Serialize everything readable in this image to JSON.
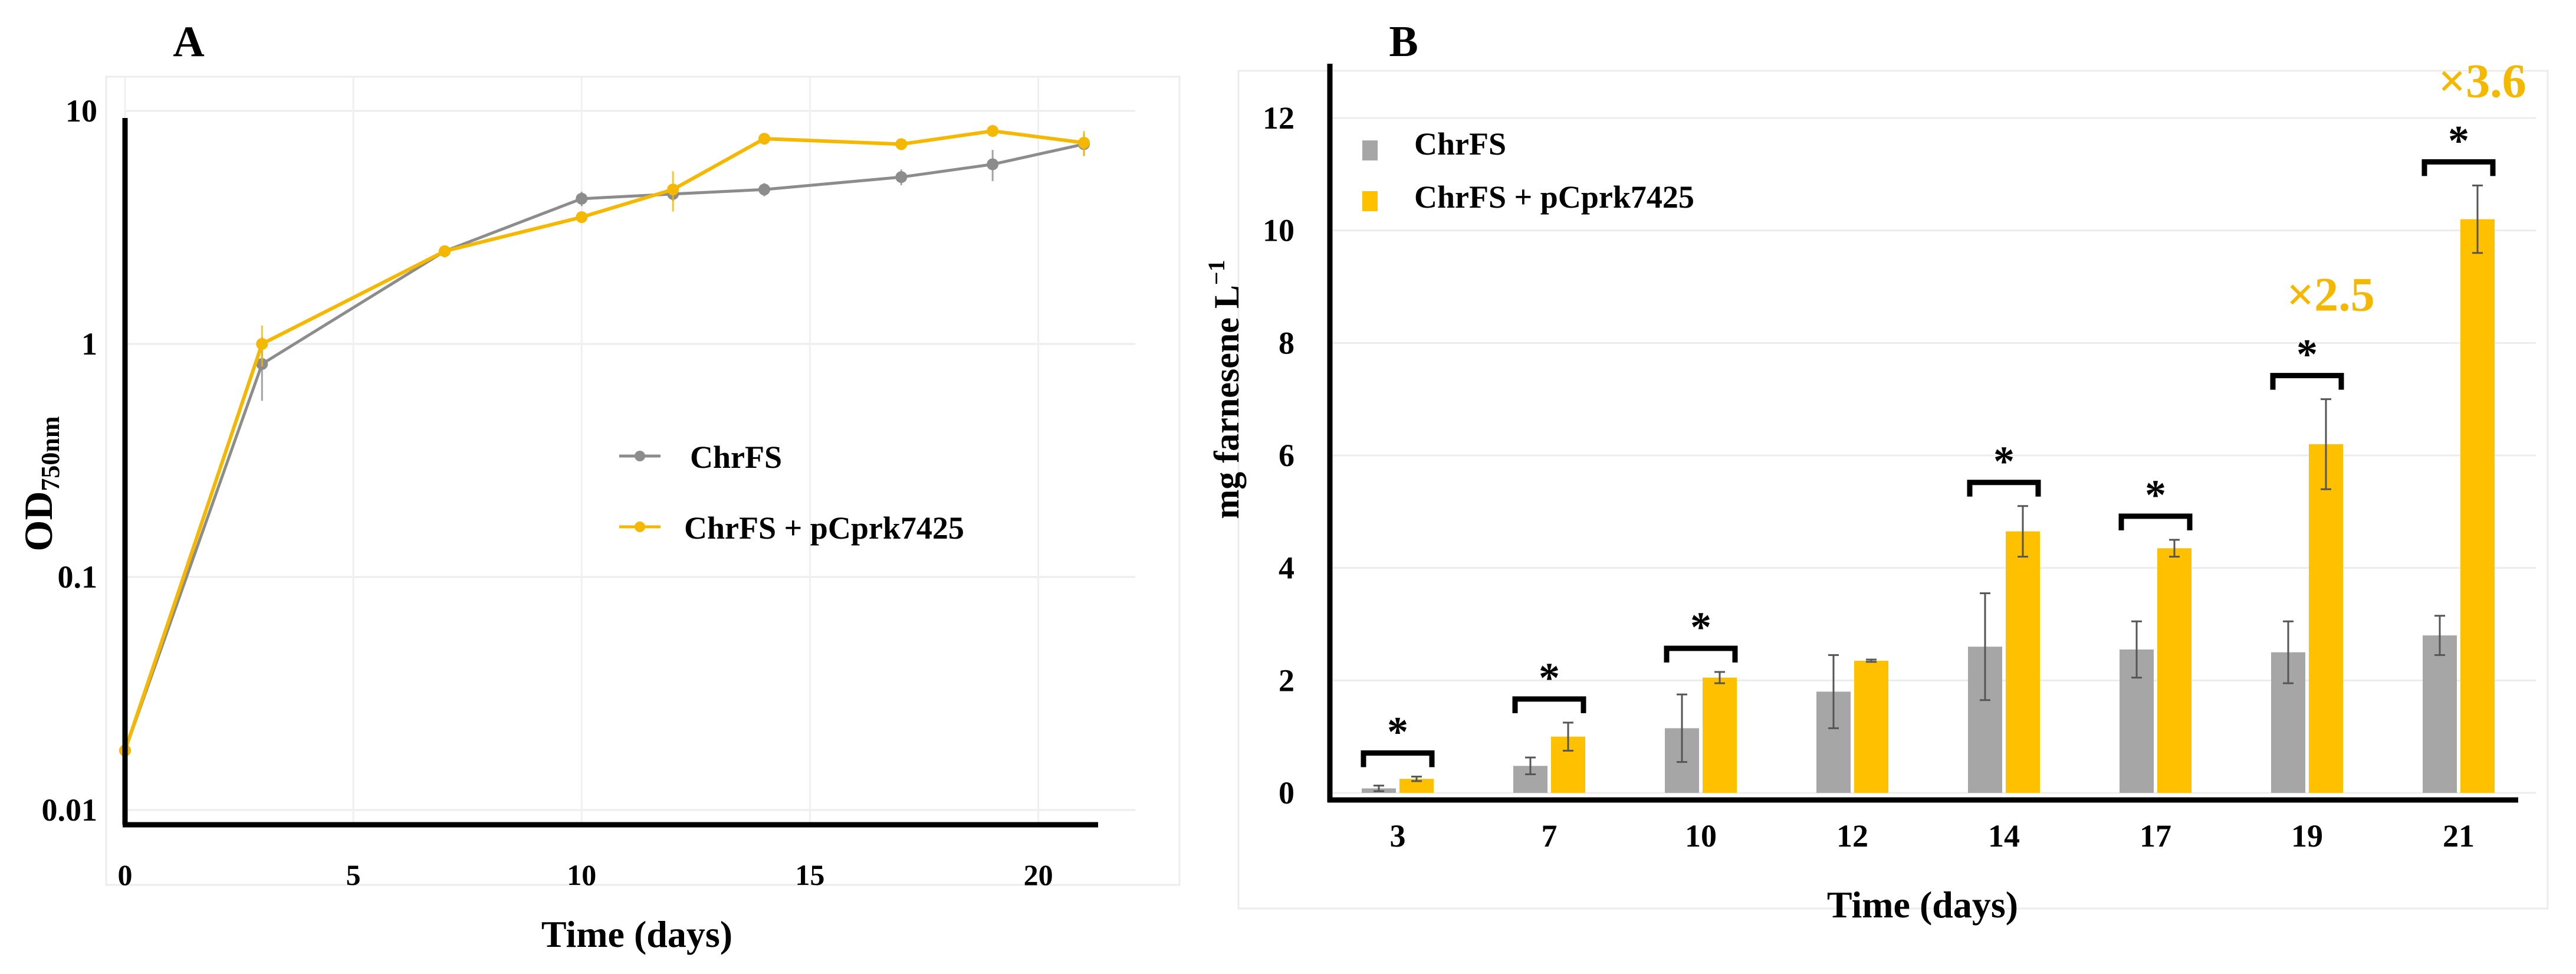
{
  "chart_data": [
    {
      "panel_label": "A",
      "type": "line",
      "yscale": "log",
      "xlabel": "Time (days)",
      "ylabel_main": "OD",
      "ylabel_sub": "750nm",
      "xlim": [
        0,
        21
      ],
      "ylim": [
        0.01,
        10
      ],
      "xticks": [
        0,
        5,
        10,
        15,
        20
      ],
      "yticks": [
        {
          "value": 0.01,
          "label": "0.01"
        },
        {
          "value": 0.1,
          "label": "0.1"
        },
        {
          "value": 1,
          "label": "1"
        },
        {
          "value": 10,
          "label": "10"
        }
      ],
      "legend_position": "center-right",
      "series": [
        {
          "name": "ChrFS",
          "color": "#8c8c8c",
          "points": [
            {
              "x": 0,
              "y": 0.018,
              "err": 0.002
            },
            {
              "x": 3,
              "y": 0.82,
              "err": 0.25
            },
            {
              "x": 7,
              "y": 2.5,
              "err": 0.15
            },
            {
              "x": 10,
              "y": 4.2,
              "err": 0.3
            },
            {
              "x": 12,
              "y": 4.4,
              "err": 0.3
            },
            {
              "x": 14,
              "y": 4.6,
              "err": 0.3
            },
            {
              "x": 17,
              "y": 5.2,
              "err": 0.4
            },
            {
              "x": 19,
              "y": 5.9,
              "err": 0.9
            },
            {
              "x": 21,
              "y": 7.2,
              "err": 0.8
            }
          ]
        },
        {
          "name": "ChrFS + pCprk7425",
          "color": "#f5b800",
          "points": [
            {
              "x": 0,
              "y": 0.018,
              "err": 0.002
            },
            {
              "x": 3,
              "y": 1.0,
              "err": 0.2
            },
            {
              "x": 7,
              "y": 2.5,
              "err": 0.1
            },
            {
              "x": 10,
              "y": 3.5,
              "err": 0.2
            },
            {
              "x": 12,
              "y": 4.6,
              "err": 0.9
            },
            {
              "x": 14,
              "y": 7.6,
              "err": 0.3
            },
            {
              "x": 17,
              "y": 7.2,
              "err": 0.3
            },
            {
              "x": 19,
              "y": 8.2,
              "err": 0.3
            },
            {
              "x": 21,
              "y": 7.3,
              "err": 0.9
            }
          ]
        }
      ]
    },
    {
      "panel_label": "B",
      "type": "bar",
      "xlabel": "Time (days)",
      "ylabel": "mg farnesene L",
      "ylabel_sup": "−1",
      "ylim": [
        0,
        12
      ],
      "yticks": [
        0,
        2,
        4,
        6,
        8,
        10,
        12
      ],
      "categories": [
        "3",
        "7",
        "10",
        "12",
        "14",
        "17",
        "19",
        "21"
      ],
      "legend_position": "top-left",
      "series": [
        {
          "name": "ChrFS",
          "color": "#a6a6a6",
          "values": [
            0.08,
            0.48,
            1.15,
            1.8,
            2.6,
            2.55,
            2.5,
            2.8
          ],
          "errors": [
            0.05,
            0.15,
            0.6,
            0.65,
            0.95,
            0.5,
            0.55,
            0.35
          ]
        },
        {
          "name": "ChrFS + pCprk7425",
          "color": "#ffc000",
          "values": [
            0.25,
            1.0,
            2.05,
            2.35,
            4.65,
            4.35,
            6.2,
            10.2
          ],
          "errors": [
            0.04,
            0.25,
            0.1,
            0.02,
            0.45,
            0.15,
            0.8,
            0.6
          ]
        }
      ],
      "significance": [
        {
          "category": "3",
          "label": "*"
        },
        {
          "category": "7",
          "label": "*"
        },
        {
          "category": "10",
          "label": "*"
        },
        {
          "category": "14",
          "label": "*"
        },
        {
          "category": "17",
          "label": "*"
        },
        {
          "category": "19",
          "label": "*"
        },
        {
          "category": "21",
          "label": "*"
        }
      ],
      "fold_annotations": [
        {
          "category": "19",
          "label": "×2.5",
          "color": "#f5b800"
        },
        {
          "category": "21",
          "label": "×3.6",
          "color": "#f5b800"
        }
      ]
    }
  ]
}
